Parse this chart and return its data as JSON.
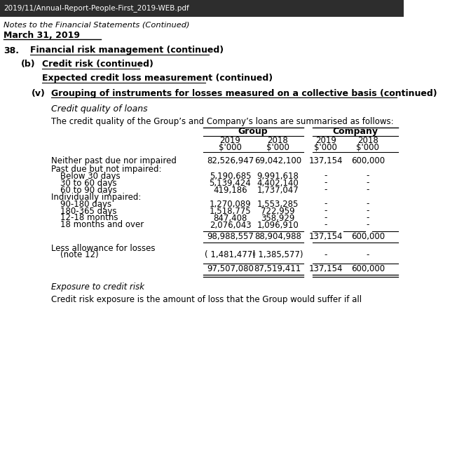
{
  "header_bar_color": "#2d2d2d",
  "header_bar_text": "2019/11/Annual-Report-People-First_2019-WEB.pdf",
  "top_text": "Notes to the Financial Statements (Continued)",
  "date_text": "March 31, 2019",
  "section_38": "38.",
  "section_38_title": "Financial risk management (continued)",
  "section_b": "(b)",
  "section_b_title": "Credit risk (continued)",
  "section_ecl": "Expected credit loss measurement (continued)",
  "section_v": "(v)",
  "section_v_title": "Grouping of instruments for losses measured on a collective basis (continued)",
  "italic_title": "Credit quality of loans",
  "intro_text": "The credit quality of the Group’s and Company’s loans are summarised as follows:",
  "col_group": "Group",
  "col_company": "Company",
  "col_headers_line1": [
    "2019",
    "2018",
    "2019",
    "2018"
  ],
  "col_headers_line2": [
    "$'000",
    "$'000",
    "$'000",
    "$'000"
  ],
  "row_labels": [
    "Neither past due nor impaired",
    "Past due but not impaired:",
    "Below 30 days",
    "30 to 60 days",
    "60 to 90 days",
    "Individually impaired:",
    "90-180 days",
    "180-365 days",
    "12-18 months",
    "18 months and over",
    "",
    "Less allowance for losses",
    "(note 12)",
    ""
  ],
  "data": [
    [
      "82,526,947",
      "69,042,100",
      "137,154",
      "600,000"
    ],
    [
      "",
      "",
      "",
      ""
    ],
    [
      "5,190,685",
      "9,991,618",
      "-",
      "-"
    ],
    [
      "5,139,424",
      "4,402,140",
      "-",
      "-"
    ],
    [
      "419,186",
      "1,737,047",
      "-",
      "-"
    ],
    [
      "",
      "",
      "",
      ""
    ],
    [
      "1,270,089",
      "1,553,285",
      "-",
      "-"
    ],
    [
      "1,518,775",
      "722,959",
      "-",
      "-"
    ],
    [
      "847,408",
      "358,929",
      "-",
      "-"
    ],
    [
      "2,076,043",
      "1,096,910",
      "-",
      "-"
    ],
    [
      "98,988,557",
      "88,904,988",
      "137,154",
      "600,000"
    ],
    [
      "",
      "",
      "",
      ""
    ],
    [
      "( 1,481,477)",
      "( 1,385,577)",
      "-",
      "-"
    ],
    [
      "97,507,080",
      "87,519,411",
      "137,154",
      "600,000"
    ]
  ],
  "bottom_italic": "Exposure to credit risk",
  "bottom_text": "Credit risk exposure is the amount of loss that the Group would suffer if all",
  "bg_color": "#ffffff",
  "text_color": "#000000"
}
